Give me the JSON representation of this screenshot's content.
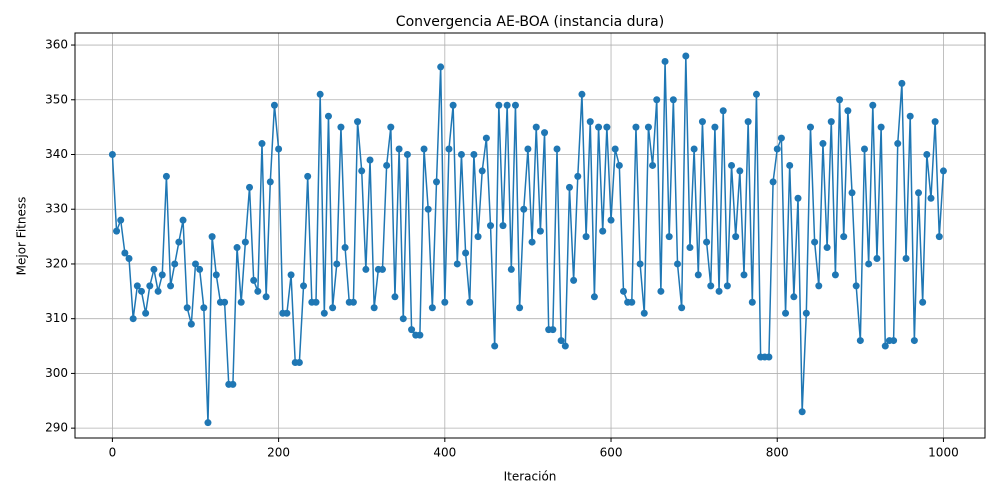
{
  "chart_data": {
    "type": "line",
    "title": "Convergencia AE-BOA (instancia dura)",
    "xlabel": "Iteración",
    "ylabel": "Mejor Fitness",
    "x": [
      0,
      5,
      10,
      15,
      20,
      25,
      30,
      35,
      40,
      45,
      50,
      55,
      60,
      65,
      70,
      75,
      80,
      85,
      90,
      95,
      100,
      105,
      110,
      115,
      120,
      125,
      130,
      135,
      140,
      145,
      150,
      155,
      160,
      165,
      170,
      175,
      180,
      185,
      190,
      195,
      200,
      205,
      210,
      215,
      220,
      225,
      230,
      235,
      240,
      245,
      250,
      255,
      260,
      265,
      270,
      275,
      280,
      285,
      290,
      295,
      300,
      305,
      310,
      315,
      320,
      325,
      330,
      335,
      340,
      345,
      350,
      355,
      360,
      365,
      370,
      375,
      380,
      385,
      390,
      395,
      400,
      405,
      410,
      415,
      420,
      425,
      430,
      435,
      440,
      445,
      450,
      455,
      460,
      465,
      470,
      475,
      480,
      485,
      490,
      495,
      500,
      505,
      510,
      515,
      520,
      525,
      530,
      535,
      540,
      545,
      550,
      555,
      560,
      565,
      570,
      575,
      580,
      585,
      590,
      595,
      600,
      605,
      610,
      615,
      620,
      625,
      630,
      635,
      640,
      645,
      650,
      655,
      660,
      665,
      670,
      675,
      680,
      685,
      690,
      695,
      700,
      705,
      710,
      715,
      720,
      725,
      730,
      735,
      740,
      745,
      750,
      755,
      760,
      765,
      770,
      775,
      780,
      785,
      790,
      795,
      800,
      805,
      810,
      815,
      820,
      825,
      830,
      835,
      840,
      845,
      850,
      855,
      860,
      865,
      870,
      875,
      880,
      885,
      890,
      895,
      900,
      905,
      910,
      915,
      920,
      925,
      930,
      935,
      940,
      945,
      950,
      955,
      960,
      965,
      970,
      975,
      980,
      985,
      990,
      995,
      1000
    ],
    "values": [
      340,
      326,
      328,
      322,
      321,
      310,
      316,
      315,
      311,
      316,
      319,
      315,
      318,
      336,
      316,
      320,
      324,
      328,
      312,
      309,
      320,
      319,
      312,
      291,
      325,
      318,
      313,
      313,
      298,
      298,
      323,
      313,
      324,
      334,
      317,
      315,
      342,
      314,
      335,
      349,
      341,
      311,
      311,
      318,
      302,
      302,
      316,
      336,
      313,
      313,
      351,
      311,
      347,
      312,
      320,
      345,
      323,
      313,
      313,
      346,
      337,
      319,
      339,
      312,
      319,
      319,
      338,
      345,
      314,
      341,
      310,
      340,
      308,
      307,
      307,
      341,
      330,
      312,
      335,
      356,
      313,
      341,
      349,
      320,
      340,
      322,
      313,
      340,
      325,
      337,
      343,
      327,
      305,
      349,
      327,
      349,
      319,
      349,
      312,
      330,
      341,
      324,
      345,
      326,
      344,
      308,
      308,
      341,
      306,
      305,
      334,
      317,
      336,
      351,
      325,
      346,
      314,
      345,
      326,
      345,
      328,
      341,
      338,
      315,
      313,
      313,
      345,
      320,
      311,
      345,
      338,
      350,
      315,
      357,
      325,
      350,
      320,
      312,
      358,
      323,
      341,
      318,
      346,
      324,
      316,
      345,
      315,
      348,
      316,
      338,
      325,
      337,
      318,
      346,
      313,
      351,
      303,
      303,
      303,
      335,
      341,
      343,
      311,
      338,
      314,
      332,
      293,
      311,
      345,
      324,
      316,
      342,
      323,
      346,
      318,
      350,
      325,
      348,
      333,
      316,
      306,
      341,
      320,
      349,
      321,
      345,
      305,
      306,
      306,
      342,
      353,
      321,
      347,
      306,
      333,
      313,
      340,
      332,
      346,
      325,
      337
    ],
    "color": "#1f77b4",
    "xlim": [
      -45,
      1050
    ],
    "ylim": [
      288.2,
      362.2
    ],
    "xticks": [
      0,
      200,
      400,
      600,
      800,
      1000
    ],
    "yticks": [
      290,
      300,
      310,
      320,
      330,
      340,
      350,
      360
    ],
    "grid": true
  }
}
